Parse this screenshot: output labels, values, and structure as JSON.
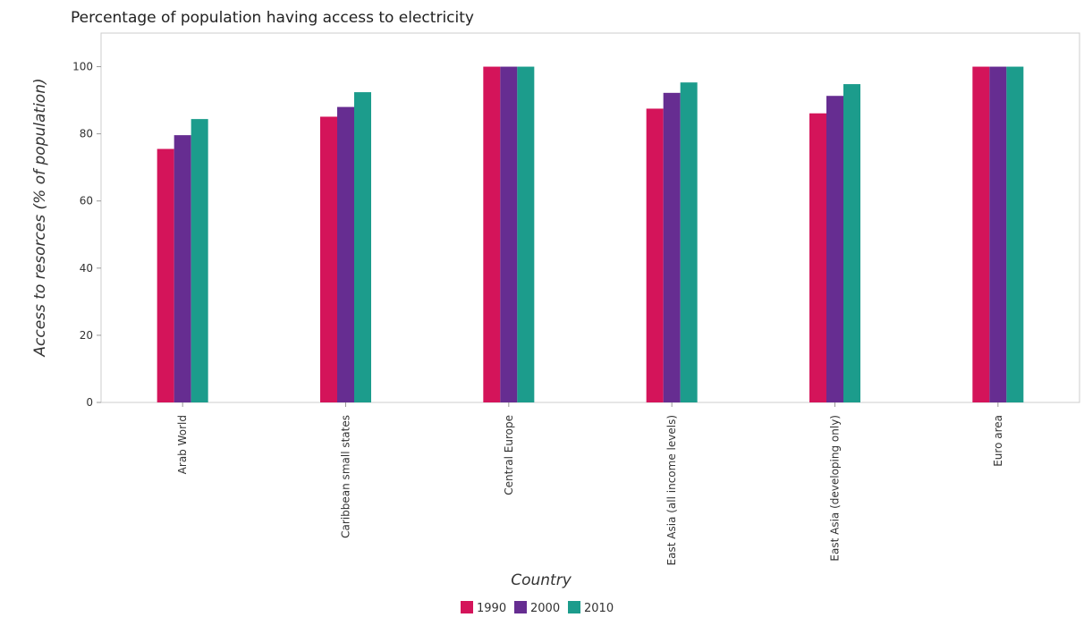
{
  "chart_data": {
    "type": "bar",
    "title": "Percentage of population having access to electricity",
    "xlabel": "Country",
    "ylabel": "Access to resorces (% of population)",
    "categories": [
      "Arab World",
      "Caribbean small states",
      "Central Europe",
      "East Asia (all income levels)",
      "East Asia (developing only)",
      "Euro area"
    ],
    "series": [
      {
        "name": "1990",
        "color": "#d4145a",
        "values": [
          75.5,
          85.1,
          100,
          87.5,
          86.1,
          100
        ]
      },
      {
        "name": "2000",
        "color": "#662d91",
        "values": [
          79.6,
          88.0,
          100,
          92.2,
          91.3,
          100
        ]
      },
      {
        "name": "2010",
        "color": "#1c9c8c",
        "values": [
          84.4,
          92.4,
          100,
          95.3,
          94.8,
          100
        ]
      }
    ],
    "ylim": [
      0,
      110
    ],
    "yticks": [
      0,
      20,
      40,
      60,
      80,
      100
    ],
    "grid": false,
    "legend_position": "bottom"
  }
}
